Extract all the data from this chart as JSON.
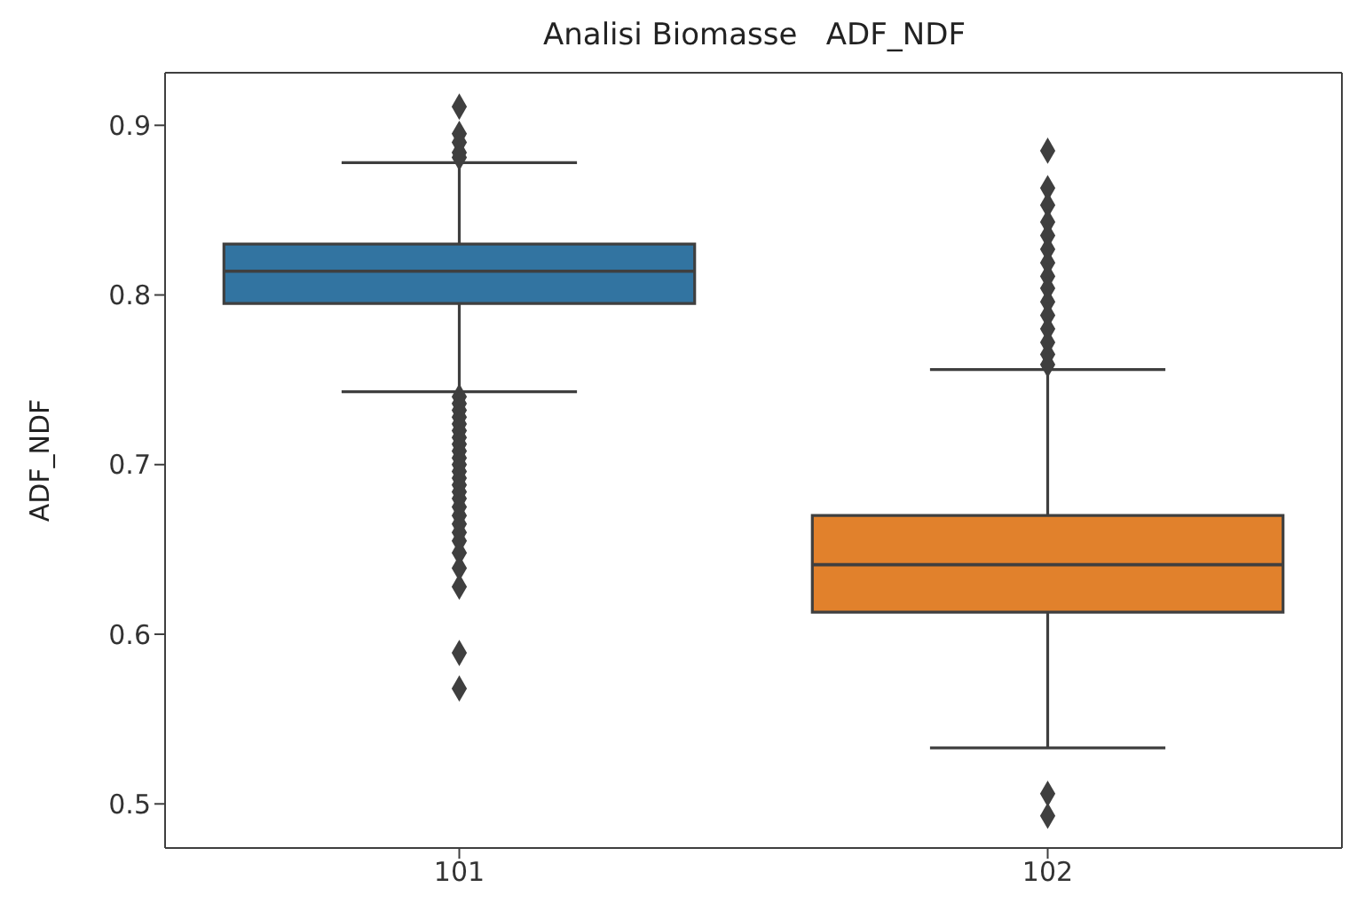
{
  "chart_data": {
    "type": "box",
    "title": "Analisi Biomasse   ADF_NDF",
    "ylabel": "ADF_NDF",
    "categories": [
      "101",
      "102"
    ],
    "colors": [
      "#3274a1",
      "#e1812c"
    ],
    "boxes": [
      {
        "low": 0.743,
        "q1": 0.795,
        "median": 0.814,
        "q3": 0.83,
        "high": 0.878,
        "outliers": [
          0.911,
          0.895,
          0.89,
          0.884,
          0.881,
          0.74,
          0.736,
          0.732,
          0.728,
          0.724,
          0.72,
          0.716,
          0.712,
          0.708,
          0.704,
          0.7,
          0.696,
          0.692,
          0.688,
          0.684,
          0.68,
          0.675,
          0.67,
          0.665,
          0.66,
          0.655,
          0.648,
          0.639,
          0.628,
          0.589,
          0.568
        ]
      },
      {
        "low": 0.533,
        "q1": 0.613,
        "median": 0.641,
        "q3": 0.67,
        "high": 0.756,
        "outliers": [
          0.885,
          0.863,
          0.853,
          0.843,
          0.835,
          0.827,
          0.819,
          0.811,
          0.804,
          0.796,
          0.788,
          0.78,
          0.772,
          0.765,
          0.759,
          0.506,
          0.493
        ]
      }
    ],
    "ylim": [
      0.474,
      0.931
    ],
    "yticks": [
      0.5,
      0.6,
      0.7,
      0.8,
      0.9
    ],
    "marker": "diamond"
  }
}
